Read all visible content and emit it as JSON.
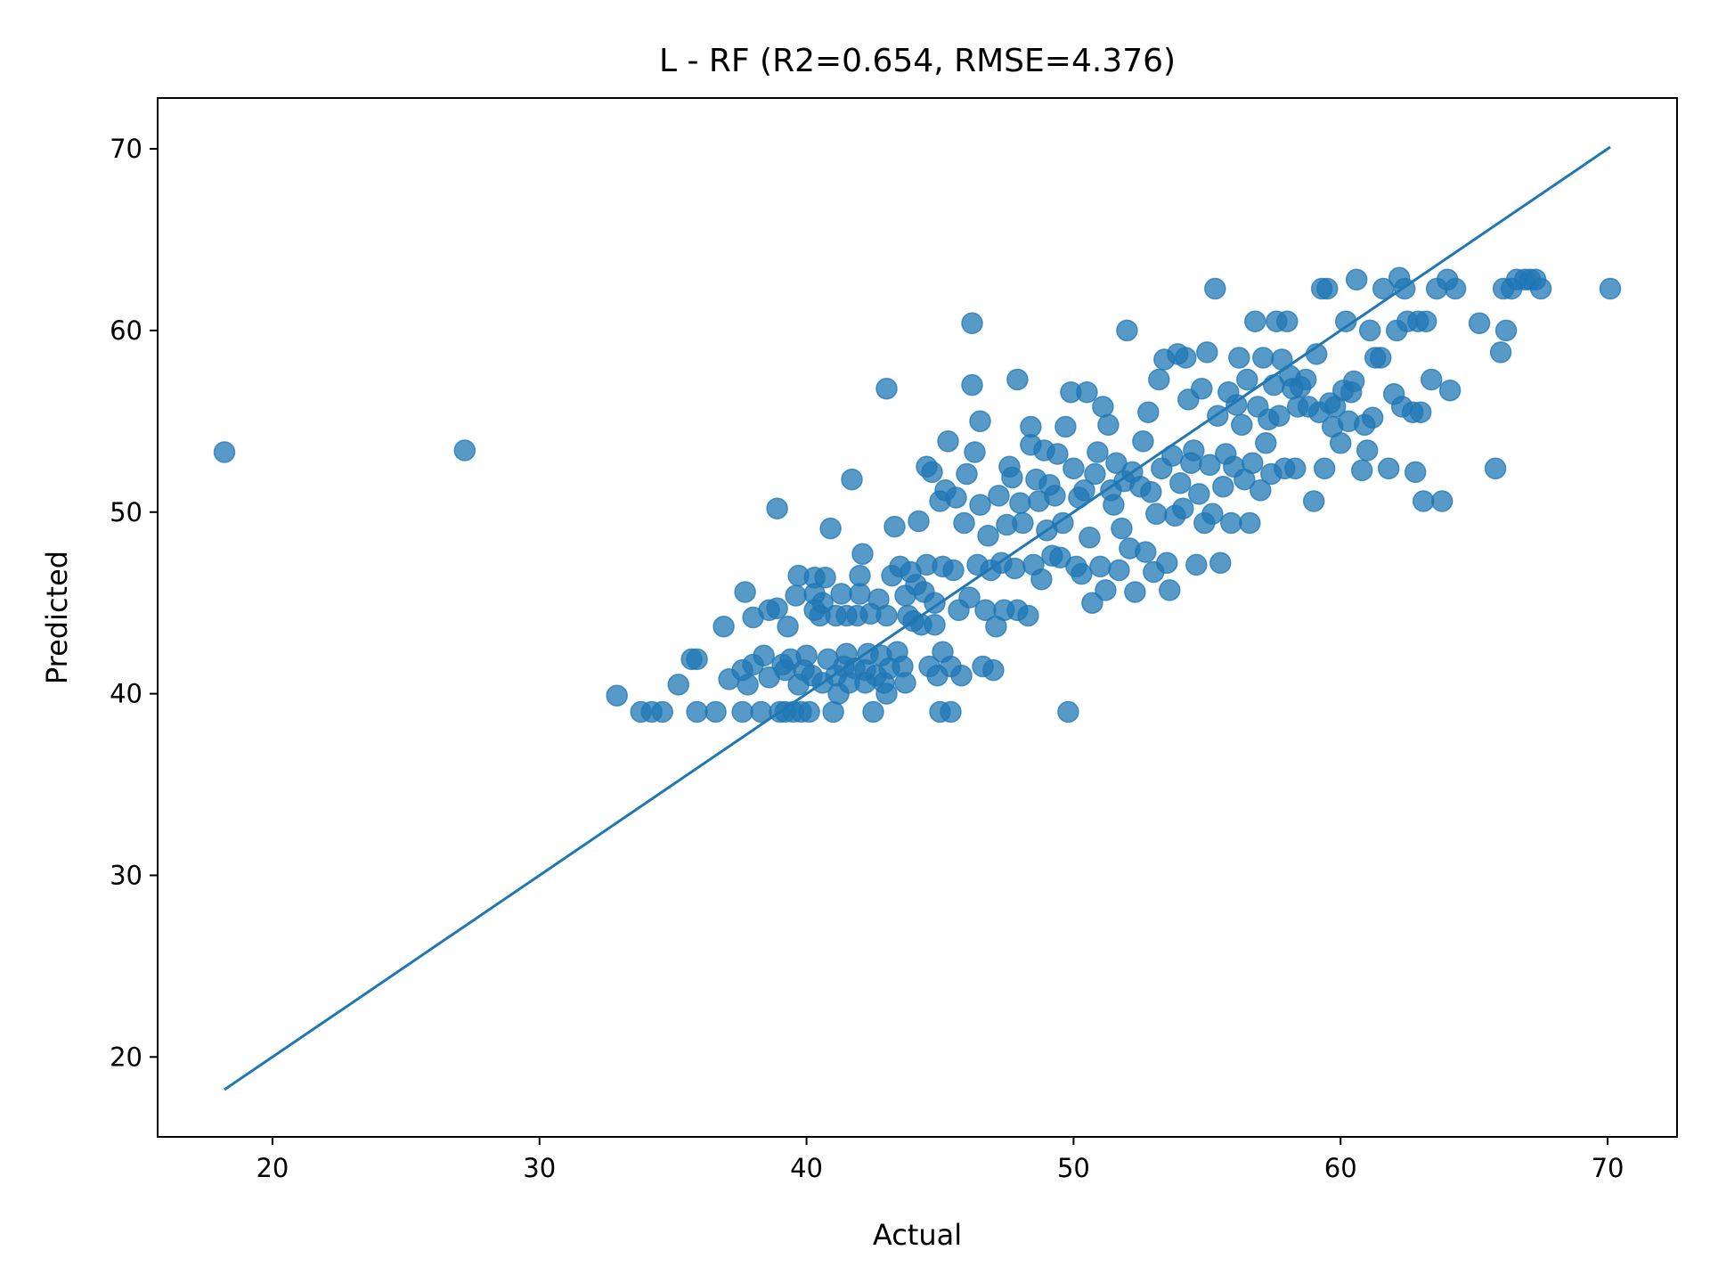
{
  "chart_data": {
    "type": "scatter",
    "title": "L - RF (R2=0.654, RMSE=4.376)",
    "xlabel": "Actual",
    "ylabel": "Predicted",
    "xlim": [
      15.7,
      72.6
    ],
    "ylim": [
      15.6,
      72.8
    ],
    "xticks": [
      20,
      30,
      40,
      50,
      60,
      70
    ],
    "yticks": [
      20,
      30,
      40,
      50,
      60,
      70
    ],
    "grid": false,
    "marker_color": "#1f77b4",
    "marker_alpha": 0.75,
    "line_color": "#1f77b4",
    "metrics": {
      "R2": 0.654,
      "RMSE": 4.376
    },
    "reference_line": {
      "x": [
        18.2,
        70.1
      ],
      "y": [
        18.2,
        70.1
      ]
    },
    "points": [
      [
        18.2,
        53.3
      ],
      [
        27.2,
        53.4
      ],
      [
        32.9,
        39.9
      ],
      [
        33.8,
        39.0
      ],
      [
        34.2,
        39.0
      ],
      [
        34.6,
        39.0
      ],
      [
        35.2,
        40.5
      ],
      [
        35.7,
        41.9
      ],
      [
        35.9,
        41.9
      ],
      [
        35.9,
        39.0
      ],
      [
        36.6,
        39.0
      ],
      [
        36.9,
        43.7
      ],
      [
        37.1,
        40.8
      ],
      [
        37.6,
        39.0
      ],
      [
        37.6,
        41.3
      ],
      [
        37.7,
        45.6
      ],
      [
        37.8,
        40.5
      ],
      [
        38.0,
        41.6
      ],
      [
        38.0,
        44.2
      ],
      [
        38.3,
        39.0
      ],
      [
        38.4,
        42.1
      ],
      [
        38.6,
        44.6
      ],
      [
        38.6,
        40.9
      ],
      [
        38.9,
        50.2
      ],
      [
        38.9,
        44.7
      ],
      [
        39.0,
        39.0
      ],
      [
        39.1,
        41.6
      ],
      [
        39.2,
        39.0
      ],
      [
        39.2,
        41.3
      ],
      [
        39.3,
        43.7
      ],
      [
        39.4,
        41.9
      ],
      [
        39.5,
        39.0
      ],
      [
        39.6,
        45.4
      ],
      [
        39.7,
        40.5
      ],
      [
        39.7,
        46.5
      ],
      [
        39.8,
        39.0
      ],
      [
        39.9,
        41.3
      ],
      [
        40.0,
        42.1
      ],
      [
        40.1,
        39.0
      ],
      [
        40.2,
        41.0
      ],
      [
        40.3,
        45.5
      ],
      [
        40.3,
        44.6
      ],
      [
        40.3,
        46.4
      ],
      [
        40.5,
        44.3
      ],
      [
        40.6,
        40.6
      ],
      [
        40.6,
        45.0
      ],
      [
        40.7,
        46.4
      ],
      [
        40.8,
        41.9
      ],
      [
        40.9,
        49.1
      ],
      [
        41.0,
        39.0
      ],
      [
        41.1,
        41.0
      ],
      [
        41.1,
        44.3
      ],
      [
        41.2,
        40.0
      ],
      [
        41.3,
        45.5
      ],
      [
        41.4,
        41.5
      ],
      [
        41.5,
        42.2
      ],
      [
        41.5,
        44.3
      ],
      [
        41.6,
        40.6
      ],
      [
        41.7,
        51.8
      ],
      [
        41.8,
        41.4
      ],
      [
        41.9,
        44.3
      ],
      [
        42.0,
        45.5
      ],
      [
        42.0,
        46.5
      ],
      [
        42.1,
        47.7
      ],
      [
        42.2,
        40.6
      ],
      [
        42.2,
        41.3
      ],
      [
        42.3,
        42.2
      ],
      [
        42.4,
        44.4
      ],
      [
        42.5,
        39.0
      ],
      [
        42.6,
        41.0
      ],
      [
        42.7,
        45.2
      ],
      [
        42.8,
        42.1
      ],
      [
        42.9,
        40.6
      ],
      [
        43.0,
        56.8
      ],
      [
        43.0,
        44.3
      ],
      [
        43.0,
        40.0
      ],
      [
        43.1,
        41.4
      ],
      [
        43.2,
        46.5
      ],
      [
        43.3,
        49.2
      ],
      [
        43.4,
        42.3
      ],
      [
        43.5,
        47.0
      ],
      [
        43.6,
        41.5
      ],
      [
        43.7,
        40.6
      ],
      [
        43.7,
        45.4
      ],
      [
        43.8,
        44.3
      ],
      [
        43.9,
        46.7
      ],
      [
        44.0,
        44.0
      ],
      [
        44.1,
        46.0
      ],
      [
        44.2,
        49.5
      ],
      [
        44.3,
        43.8
      ],
      [
        44.4,
        45.6
      ],
      [
        44.5,
        52.5
      ],
      [
        44.5,
        47.1
      ],
      [
        44.6,
        41.5
      ],
      [
        44.7,
        52.2
      ],
      [
        44.8,
        45.0
      ],
      [
        44.8,
        43.8
      ],
      [
        44.9,
        41.0
      ],
      [
        45.0,
        39.0
      ],
      [
        45.0,
        50.6
      ],
      [
        45.1,
        42.3
      ],
      [
        45.1,
        47.0
      ],
      [
        45.2,
        51.2
      ],
      [
        45.3,
        53.9
      ],
      [
        45.4,
        39.0
      ],
      [
        45.4,
        41.5
      ],
      [
        45.5,
        46.8
      ],
      [
        45.6,
        50.8
      ],
      [
        45.7,
        44.6
      ],
      [
        45.8,
        41.0
      ],
      [
        45.9,
        49.4
      ],
      [
        46.0,
        52.1
      ],
      [
        46.1,
        45.3
      ],
      [
        46.2,
        57.0
      ],
      [
        46.2,
        60.4
      ],
      [
        46.3,
        53.3
      ],
      [
        46.4,
        47.1
      ],
      [
        46.5,
        55.0
      ],
      [
        46.5,
        50.4
      ],
      [
        46.6,
        41.5
      ],
      [
        46.7,
        44.6
      ],
      [
        46.8,
        48.7
      ],
      [
        46.9,
        46.8
      ],
      [
        47.0,
        41.3
      ],
      [
        47.1,
        43.7
      ],
      [
        47.2,
        50.9
      ],
      [
        47.3,
        47.2
      ],
      [
        47.4,
        44.6
      ],
      [
        47.5,
        49.3
      ],
      [
        47.6,
        52.5
      ],
      [
        47.7,
        51.9
      ],
      [
        47.8,
        46.9
      ],
      [
        47.9,
        44.6
      ],
      [
        47.9,
        57.3
      ],
      [
        48.0,
        50.5
      ],
      [
        48.1,
        49.4
      ],
      [
        48.3,
        44.3
      ],
      [
        48.4,
        53.7
      ],
      [
        48.4,
        54.7
      ],
      [
        48.5,
        47.1
      ],
      [
        48.6,
        51.8
      ],
      [
        48.7,
        50.6
      ],
      [
        48.8,
        46.3
      ],
      [
        48.9,
        53.4
      ],
      [
        49.0,
        49.0
      ],
      [
        49.1,
        51.5
      ],
      [
        49.2,
        47.6
      ],
      [
        49.3,
        50.9
      ],
      [
        49.4,
        53.2
      ],
      [
        49.5,
        47.5
      ],
      [
        49.6,
        49.4
      ],
      [
        49.7,
        54.7
      ],
      [
        49.8,
        39.0
      ],
      [
        49.9,
        56.6
      ],
      [
        50.0,
        52.4
      ],
      [
        50.1,
        47.0
      ],
      [
        50.2,
        50.8
      ],
      [
        50.3,
        46.6
      ],
      [
        50.4,
        51.2
      ],
      [
        50.5,
        56.6
      ],
      [
        50.6,
        48.6
      ],
      [
        50.7,
        45.0
      ],
      [
        50.8,
        52.1
      ],
      [
        50.9,
        53.3
      ],
      [
        51.0,
        47.0
      ],
      [
        51.1,
        55.8
      ],
      [
        51.2,
        45.7
      ],
      [
        51.3,
        54.8
      ],
      [
        51.4,
        51.2
      ],
      [
        51.5,
        50.4
      ],
      [
        51.6,
        52.7
      ],
      [
        51.7,
        46.8
      ],
      [
        51.8,
        49.1
      ],
      [
        51.9,
        51.7
      ],
      [
        52.0,
        60.0
      ],
      [
        52.1,
        48.0
      ],
      [
        52.2,
        52.2
      ],
      [
        52.3,
        45.6
      ],
      [
        52.5,
        51.4
      ],
      [
        52.6,
        53.9
      ],
      [
        52.7,
        47.8
      ],
      [
        52.8,
        55.5
      ],
      [
        52.9,
        51.1
      ],
      [
        53.0,
        46.7
      ],
      [
        53.1,
        49.9
      ],
      [
        53.2,
        57.3
      ],
      [
        53.3,
        52.4
      ],
      [
        53.4,
        58.4
      ],
      [
        53.5,
        47.2
      ],
      [
        53.6,
        45.7
      ],
      [
        53.7,
        53.1
      ],
      [
        53.8,
        49.8
      ],
      [
        53.9,
        58.7
      ],
      [
        54.0,
        51.6
      ],
      [
        54.1,
        50.2
      ],
      [
        54.2,
        58.5
      ],
      [
        54.3,
        56.2
      ],
      [
        54.4,
        52.7
      ],
      [
        54.5,
        53.4
      ],
      [
        54.6,
        47.1
      ],
      [
        54.7,
        51.0
      ],
      [
        54.8,
        56.8
      ],
      [
        54.9,
        49.4
      ],
      [
        55.0,
        58.8
      ],
      [
        55.1,
        52.6
      ],
      [
        55.2,
        49.9
      ],
      [
        55.3,
        62.3
      ],
      [
        55.4,
        55.3
      ],
      [
        55.5,
        47.2
      ],
      [
        55.6,
        51.4
      ],
      [
        55.7,
        53.2
      ],
      [
        55.8,
        56.6
      ],
      [
        55.9,
        49.4
      ],
      [
        56.0,
        52.5
      ],
      [
        56.1,
        55.9
      ],
      [
        56.2,
        58.5
      ],
      [
        56.3,
        54.8
      ],
      [
        56.4,
        51.8
      ],
      [
        56.5,
        57.3
      ],
      [
        56.6,
        49.4
      ],
      [
        56.7,
        52.7
      ],
      [
        56.8,
        60.5
      ],
      [
        56.9,
        55.8
      ],
      [
        57.0,
        51.2
      ],
      [
        57.1,
        58.5
      ],
      [
        57.2,
        53.8
      ],
      [
        57.3,
        55.1
      ],
      [
        57.4,
        52.1
      ],
      [
        57.5,
        57.0
      ],
      [
        57.6,
        60.5
      ],
      [
        57.7,
        55.3
      ],
      [
        57.8,
        58.4
      ],
      [
        57.9,
        52.4
      ],
      [
        58.0,
        60.5
      ],
      [
        58.1,
        57.5
      ],
      [
        58.2,
        56.8
      ],
      [
        58.3,
        52.4
      ],
      [
        58.4,
        55.8
      ],
      [
        58.5,
        56.9
      ],
      [
        58.7,
        57.3
      ],
      [
        58.8,
        55.8
      ],
      [
        59.0,
        50.6
      ],
      [
        59.1,
        58.7
      ],
      [
        59.2,
        55.5
      ],
      [
        59.3,
        62.3
      ],
      [
        59.4,
        52.4
      ],
      [
        59.5,
        62.3
      ],
      [
        59.6,
        56.0
      ],
      [
        59.7,
        54.7
      ],
      [
        59.8,
        55.8
      ],
      [
        60.0,
        53.8
      ],
      [
        60.1,
        56.7
      ],
      [
        60.2,
        60.5
      ],
      [
        60.3,
        55.0
      ],
      [
        60.4,
        56.6
      ],
      [
        60.5,
        57.2
      ],
      [
        60.6,
        62.8
      ],
      [
        60.8,
        52.3
      ],
      [
        60.9,
        54.8
      ],
      [
        61.0,
        53.4
      ],
      [
        61.1,
        60.0
      ],
      [
        61.2,
        55.2
      ],
      [
        61.3,
        58.5
      ],
      [
        61.5,
        58.5
      ],
      [
        61.6,
        62.3
      ],
      [
        61.8,
        52.4
      ],
      [
        62.0,
        56.5
      ],
      [
        62.1,
        60.0
      ],
      [
        62.2,
        62.9
      ],
      [
        62.3,
        55.8
      ],
      [
        62.4,
        62.3
      ],
      [
        62.5,
        60.5
      ],
      [
        62.7,
        55.5
      ],
      [
        62.8,
        52.2
      ],
      [
        62.9,
        60.5
      ],
      [
        63.0,
        55.5
      ],
      [
        63.1,
        50.6
      ],
      [
        63.2,
        60.5
      ],
      [
        63.4,
        57.3
      ],
      [
        63.6,
        62.3
      ],
      [
        63.8,
        50.6
      ],
      [
        64.0,
        62.8
      ],
      [
        64.1,
        56.7
      ],
      [
        64.3,
        62.3
      ],
      [
        65.2,
        60.4
      ],
      [
        65.8,
        52.4
      ],
      [
        66.0,
        58.8
      ],
      [
        66.1,
        62.3
      ],
      [
        66.2,
        60.0
      ],
      [
        66.4,
        62.3
      ],
      [
        66.6,
        62.8
      ],
      [
        66.9,
        62.8
      ],
      [
        67.1,
        62.8
      ],
      [
        67.3,
        62.8
      ],
      [
        67.5,
        62.3
      ],
      [
        70.1,
        62.3
      ]
    ]
  }
}
